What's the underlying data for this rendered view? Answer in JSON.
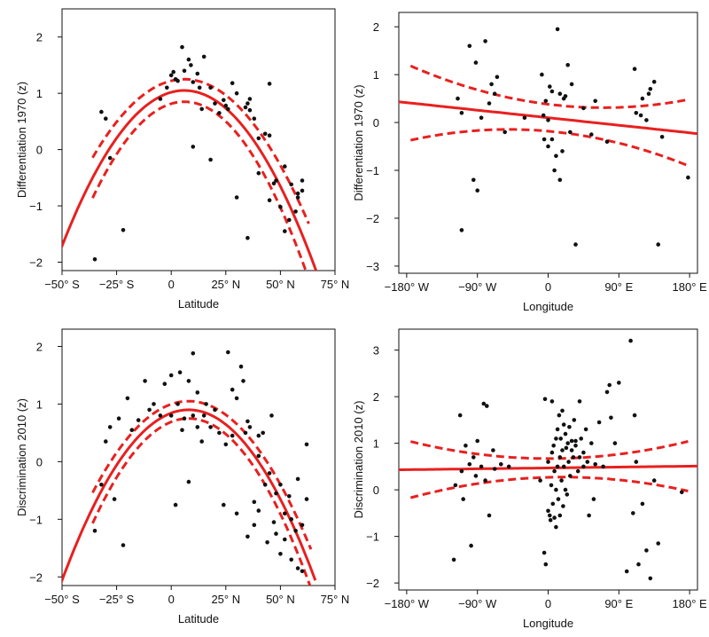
{
  "chart_data": [
    {
      "type": "scatter",
      "title": "",
      "xlabel": "Latitude",
      "ylabel": "Differentiation 1970 (z)",
      "xlim": [
        -50,
        75
      ],
      "ylim": [
        -2.15,
        2.5
      ],
      "xticks": [
        {
          "v": -50,
          "label": "−50° S"
        },
        {
          "v": -25,
          "label": "−25° S"
        },
        {
          "v": 0,
          "label": "0"
        },
        {
          "v": 25,
          "label": "25° N"
        },
        {
          "v": 50,
          "label": "50° N"
        },
        {
          "v": 75,
          "label": "75° N"
        }
      ],
      "yticks": [
        {
          "v": -2,
          "label": "−2"
        },
        {
          "v": -1,
          "label": "−1"
        },
        {
          "v": 0,
          "label": "0"
        },
        {
          "v": 1,
          "label": "1"
        },
        {
          "v": 2,
          "label": "2"
        }
      ],
      "fit": {
        "kind": "quadratic",
        "a": -0.00088,
        "vertex_x": 6,
        "vertex_y": 1.05,
        "x_range": [
          -52,
          68
        ]
      },
      "ci": {
        "width_center": 0.2,
        "width_k": 9e-05,
        "x_range": [
          -36,
          63
        ]
      },
      "points": [
        [
          -35,
          -1.95
        ],
        [
          -32,
          0.67
        ],
        [
          -30,
          0.55
        ],
        [
          -28,
          -0.15
        ],
        [
          -22,
          -1.43
        ],
        [
          -5,
          0.9
        ],
        [
          -2,
          1.1
        ],
        [
          0,
          1.32
        ],
        [
          1,
          1.38
        ],
        [
          2,
          1.25
        ],
        [
          3,
          1.22
        ],
        [
          5,
          1.82
        ],
        [
          6,
          1.4
        ],
        [
          8,
          1.6
        ],
        [
          9,
          1.5
        ],
        [
          10,
          0.05
        ],
        [
          10,
          1.2
        ],
        [
          12,
          1.35
        ],
        [
          13,
          1.1
        ],
        [
          14,
          0.72
        ],
        [
          15,
          1.65
        ],
        [
          18,
          1.1
        ],
        [
          18,
          -0.18
        ],
        [
          20,
          0.82
        ],
        [
          22,
          0.65
        ],
        [
          24,
          0.88
        ],
        [
          25,
          0.78
        ],
        [
          26,
          0.72
        ],
        [
          28,
          1.18
        ],
        [
          30,
          1.0
        ],
        [
          30,
          -0.85
        ],
        [
          34,
          0.75
        ],
        [
          35,
          -1.57
        ],
        [
          35,
          0.82
        ],
        [
          36,
          0.9
        ],
        [
          36,
          0.7
        ],
        [
          38,
          0.55
        ],
        [
          40,
          0.2
        ],
        [
          40,
          -0.42
        ],
        [
          43,
          0.28
        ],
        [
          45,
          0.25
        ],
        [
          45,
          1.17
        ],
        [
          45,
          -0.9
        ],
        [
          47,
          -0.6
        ],
        [
          48,
          -0.55
        ],
        [
          50,
          -1.02
        ],
        [
          52,
          -1.45
        ],
        [
          52,
          -0.3
        ],
        [
          54,
          -1.25
        ],
        [
          55,
          -0.62
        ],
        [
          57,
          -1.1
        ],
        [
          58,
          -0.85
        ],
        [
          58,
          -0.78
        ],
        [
          60,
          -0.55
        ],
        [
          60,
          -0.73
        ]
      ]
    },
    {
      "type": "scatter",
      "title": "",
      "xlabel": "Longitude",
      "ylabel": "Differentiation 1970 (z)",
      "xlim": [
        -190,
        190
      ],
      "ylim": [
        -3.15,
        2.3
      ],
      "xticks": [
        {
          "v": -180,
          "label": "−180° W"
        },
        {
          "v": -90,
          "label": "−90° W"
        },
        {
          "v": 0,
          "label": "0"
        },
        {
          "v": 90,
          "label": "90° E"
        },
        {
          "v": 180,
          "label": "180° E"
        }
      ],
      "yticks": [
        {
          "v": -3,
          "label": "−3"
        },
        {
          "v": -2,
          "label": "−2"
        },
        {
          "v": -1,
          "label": "−1"
        },
        {
          "v": 0,
          "label": "0"
        },
        {
          "v": 1,
          "label": "1"
        },
        {
          "v": 2,
          "label": "2"
        }
      ],
      "fit": {
        "kind": "linear",
        "slope": -0.00175,
        "intercept": 0.1,
        "x_range": [
          -190,
          190
        ]
      },
      "ci": {
        "width_center": 0.28,
        "width_k": 1.45e-05,
        "x_center": 10,
        "x_range": [
          -175,
          178
        ]
      },
      "points": [
        [
          -110,
          -2.25
        ],
        [
          -115,
          0.5
        ],
        [
          -110,
          0.2
        ],
        [
          -100,
          1.6
        ],
        [
          -95,
          -1.2
        ],
        [
          -92,
          1.25
        ],
        [
          -90,
          -1.42
        ],
        [
          -85,
          0.1
        ],
        [
          -80,
          1.7
        ],
        [
          -75,
          0.4
        ],
        [
          -72,
          0.8
        ],
        [
          -68,
          0.6
        ],
        [
          -65,
          0.95
        ],
        [
          -55,
          -0.2
        ],
        [
          -30,
          0.1
        ],
        [
          -8,
          1.0
        ],
        [
          -6,
          0.15
        ],
        [
          -5,
          -0.35
        ],
        [
          -3,
          0.45
        ],
        [
          0,
          0.05
        ],
        [
          0,
          -0.5
        ],
        [
          2,
          0.75
        ],
        [
          5,
          -0.35
        ],
        [
          5,
          0.65
        ],
        [
          8,
          -1.0
        ],
        [
          10,
          -0.7
        ],
        [
          12,
          1.95
        ],
        [
          15,
          0.6
        ],
        [
          15,
          -1.2
        ],
        [
          18,
          -0.6
        ],
        [
          20,
          0.5
        ],
        [
          22,
          0.55
        ],
        [
          25,
          1.2
        ],
        [
          28,
          -0.2
        ],
        [
          30,
          0.8
        ],
        [
          35,
          -2.55
        ],
        [
          45,
          0.3
        ],
        [
          55,
          -0.25
        ],
        [
          60,
          0.45
        ],
        [
          75,
          -0.4
        ],
        [
          110,
          1.12
        ],
        [
          112,
          0.2
        ],
        [
          118,
          0.15
        ],
        [
          120,
          0.5
        ],
        [
          125,
          0.05
        ],
        [
          128,
          0.6
        ],
        [
          130,
          0.7
        ],
        [
          135,
          0.85
        ],
        [
          140,
          -2.55
        ],
        [
          145,
          -0.3
        ],
        [
          178,
          -1.15
        ]
      ]
    },
    {
      "type": "scatter",
      "title": "",
      "xlabel": "Latitude",
      "ylabel": "Discrimination 2010 (z)",
      "xlim": [
        -50,
        75
      ],
      "ylim": [
        -2.15,
        2.3
      ],
      "xticks": [
        {
          "v": -50,
          "label": "−50° S"
        },
        {
          "v": -25,
          "label": "−25° S"
        },
        {
          "v": 0,
          "label": "0"
        },
        {
          "v": 25,
          "label": "25° N"
        },
        {
          "v": 50,
          "label": "50° N"
        },
        {
          "v": 75,
          "label": "75° N"
        }
      ],
      "yticks": [
        {
          "v": -2,
          "label": "−2"
        },
        {
          "v": -1,
          "label": "−1"
        },
        {
          "v": 0,
          "label": "0"
        },
        {
          "v": 1,
          "label": "1"
        },
        {
          "v": 2,
          "label": "2"
        }
      ],
      "fit": {
        "kind": "quadratic",
        "a": -0.00088,
        "vertex_x": 8,
        "vertex_y": 0.9,
        "x_range": [
          -52,
          66
        ]
      },
      "ci": {
        "width_center": 0.15,
        "width_k": 6e-05,
        "x_range": [
          -36,
          64
        ]
      },
      "points": [
        [
          -35,
          -1.2
        ],
        [
          -32,
          -0.4
        ],
        [
          -30,
          0.35
        ],
        [
          -28,
          0.6
        ],
        [
          -26,
          -0.65
        ],
        [
          -24,
          0.75
        ],
        [
          -22,
          -1.45
        ],
        [
          -20,
          1.1
        ],
        [
          -18,
          0.55
        ],
        [
          -15,
          0.72
        ],
        [
          -12,
          1.4
        ],
        [
          -10,
          0.9
        ],
        [
          -8,
          1.0
        ],
        [
          -5,
          0.8
        ],
        [
          -3,
          1.35
        ],
        [
          0,
          0.8
        ],
        [
          0,
          1.5
        ],
        [
          2,
          -0.75
        ],
        [
          3,
          1.0
        ],
        [
          4,
          1.55
        ],
        [
          5,
          0.55
        ],
        [
          6,
          0.75
        ],
        [
          8,
          -0.35
        ],
        [
          8,
          1.4
        ],
        [
          10,
          0.8
        ],
        [
          10,
          1.88
        ],
        [
          12,
          1.2
        ],
        [
          12,
          0.6
        ],
        [
          14,
          0.35
        ],
        [
          15,
          0.8
        ],
        [
          16,
          1.0
        ],
        [
          18,
          0.6
        ],
        [
          20,
          0.9
        ],
        [
          22,
          0.5
        ],
        [
          24,
          -0.75
        ],
        [
          25,
          0.3
        ],
        [
          26,
          1.9
        ],
        [
          28,
          1.25
        ],
        [
          28,
          0.45
        ],
        [
          30,
          1.1
        ],
        [
          30,
          -0.9
        ],
        [
          32,
          1.65
        ],
        [
          33,
          1.4
        ],
        [
          34,
          0.5
        ],
        [
          35,
          -1.3
        ],
        [
          35,
          0.7
        ],
        [
          36,
          0.6
        ],
        [
          38,
          -0.7
        ],
        [
          38,
          -1.1
        ],
        [
          40,
          0.45
        ],
        [
          40,
          0.1
        ],
        [
          40,
          -0.85
        ],
        [
          42,
          0.5
        ],
        [
          43,
          -0.4
        ],
        [
          44,
          -1.4
        ],
        [
          45,
          -0.2
        ],
        [
          46,
          0.8
        ],
        [
          47,
          -1.05
        ],
        [
          48,
          -0.55
        ],
        [
          48,
          -1.25
        ],
        [
          50,
          -0.4
        ],
        [
          50,
          -1.6
        ],
        [
          52,
          -0.9
        ],
        [
          52,
          -1.35
        ],
        [
          54,
          -0.6
        ],
        [
          55,
          -1.0
        ],
        [
          55,
          -1.7
        ],
        [
          57,
          -1.2
        ],
        [
          58,
          -0.3
        ],
        [
          58,
          -1.85
        ],
        [
          60,
          -1.1
        ],
        [
          60,
          -1.9
        ],
        [
          62,
          -0.65
        ],
        [
          62,
          0.3
        ]
      ]
    },
    {
      "type": "scatter",
      "title": "",
      "xlabel": "Longitude",
      "ylabel": "Discrimination 2010 (z)",
      "xlim": [
        -190,
        190
      ],
      "ylim": [
        -2.15,
        3.45
      ],
      "xticks": [
        {
          "v": -180,
          "label": "−180° W"
        },
        {
          "v": -90,
          "label": "−90° W"
        },
        {
          "v": 0,
          "label": "0"
        },
        {
          "v": 90,
          "label": "90° E"
        },
        {
          "v": 180,
          "label": "180° E"
        }
      ],
      "yticks": [
        {
          "v": -2,
          "label": "−2"
        },
        {
          "v": -1,
          "label": "−1"
        },
        {
          "v": 0,
          "label": "0"
        },
        {
          "v": 1,
          "label": "1"
        },
        {
          "v": 2,
          "label": "2"
        },
        {
          "v": 3,
          "label": "3"
        }
      ],
      "fit": {
        "kind": "linear",
        "slope": 0.00021,
        "intercept": 0.47,
        "x_range": [
          -190,
          190
        ]
      },
      "ci": {
        "width_center": 0.2,
        "width_k": 1.18e-05,
        "x_center": 10,
        "x_range": [
          -175,
          178
        ]
      },
      "points": [
        [
          -120,
          -1.5
        ],
        [
          -118,
          0.1
        ],
        [
          -112,
          1.6
        ],
        [
          -110,
          0.4
        ],
        [
          -108,
          -0.2
        ],
        [
          -105,
          0.95
        ],
        [
          -100,
          0.55
        ],
        [
          -98,
          -1.2
        ],
        [
          -95,
          0.7
        ],
        [
          -92,
          0.3
        ],
        [
          -90,
          1.05
        ],
        [
          -85,
          0.5
        ],
        [
          -82,
          1.85
        ],
        [
          -80,
          0.2
        ],
        [
          -78,
          1.8
        ],
        [
          -75,
          -0.55
        ],
        [
          -70,
          0.85
        ],
        [
          -68,
          0.45
        ],
        [
          -60,
          0.55
        ],
        [
          -50,
          0.5
        ],
        [
          -10,
          0.2
        ],
        [
          -5,
          -1.35
        ],
        [
          -4,
          1.95
        ],
        [
          -3,
          -1.6
        ],
        [
          0,
          0.6
        ],
        [
          0,
          -0.45
        ],
        [
          2,
          -0.55
        ],
        [
          3,
          -0.65
        ],
        [
          4,
          0.1
        ],
        [
          5,
          1.9
        ],
        [
          5,
          0.8
        ],
        [
          6,
          -0.3
        ],
        [
          7,
          0.95
        ],
        [
          8,
          0.4
        ],
        [
          8,
          -0.6
        ],
        [
          10,
          1.1
        ],
        [
          10,
          0.0
        ],
        [
          10,
          -0.8
        ],
        [
          12,
          1.3
        ],
        [
          12,
          0.5
        ],
        [
          13,
          -0.2
        ],
        [
          14,
          1.6
        ],
        [
          15,
          0.7
        ],
        [
          15,
          -0.55
        ],
        [
          16,
          1.1
        ],
        [
          17,
          0.2
        ],
        [
          18,
          1.7
        ],
        [
          18,
          0.85
        ],
        [
          19,
          -0.35
        ],
        [
          20,
          1.4
        ],
        [
          20,
          0.5
        ],
        [
          22,
          1.2
        ],
        [
          22,
          0.0
        ],
        [
          23,
          0.9
        ],
        [
          24,
          -0.1
        ],
        [
          25,
          1.0
        ],
        [
          26,
          0.6
        ],
        [
          27,
          1.35
        ],
        [
          28,
          0.3
        ],
        [
          30,
          1.05
        ],
        [
          30,
          0.85
        ],
        [
          32,
          0.7
        ],
        [
          33,
          1.5
        ],
        [
          35,
          0.95
        ],
        [
          35,
          1.05
        ],
        [
          38,
          0.4
        ],
        [
          40,
          1.9
        ],
        [
          40,
          0.7
        ],
        [
          42,
          1.1
        ],
        [
          45,
          0.8
        ],
        [
          45,
          0.5
        ],
        [
          48,
          1.3
        ],
        [
          50,
          0.6
        ],
        [
          52,
          -0.55
        ],
        [
          55,
          1.0
        ],
        [
          58,
          -0.2
        ],
        [
          60,
          0.55
        ],
        [
          65,
          1.45
        ],
        [
          70,
          0.5
        ],
        [
          75,
          2.1
        ],
        [
          78,
          2.25
        ],
        [
          80,
          1.55
        ],
        [
          85,
          1.0
        ],
        [
          90,
          2.3
        ],
        [
          100,
          -1.75
        ],
        [
          105,
          3.2
        ],
        [
          108,
          -0.5
        ],
        [
          110,
          1.6
        ],
        [
          112,
          0.6
        ],
        [
          115,
          -1.6
        ],
        [
          120,
          -0.3
        ],
        [
          125,
          -1.3
        ],
        [
          130,
          -1.9
        ],
        [
          135,
          0.2
        ],
        [
          140,
          -1.15
        ],
        [
          170,
          -0.05
        ]
      ]
    }
  ]
}
